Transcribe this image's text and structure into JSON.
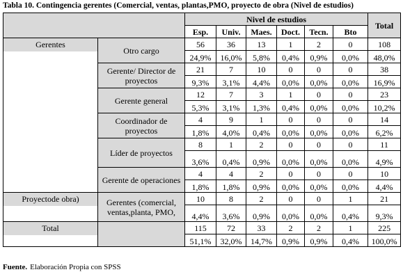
{
  "title": "Tabla 10. Contingencia gerentes (Comercial, ventas, plantas,PMO, proyecto de obra (Nivel de estudios)",
  "table": {
    "group_header": "Nivel de estudios",
    "total_header": "Total",
    "columns": [
      "Esp.",
      "Univ.",
      "Maes.",
      "Doct.",
      "Tecn.",
      "Bto"
    ],
    "groups": [
      {
        "label": "Gerentes",
        "rows": [
          {
            "label": "Otro cargo",
            "counts": [
              56,
              36,
              13,
              1,
              2,
              0,
              108
            ],
            "percents": [
              "24,9%",
              "16,0%",
              "5,8%",
              "0,4%",
              "0,9%",
              "0,0%",
              "48,0%"
            ]
          },
          {
            "label": "Gerente/ Director de proyectos",
            "counts": [
              21,
              7,
              10,
              0,
              0,
              0,
              38
            ],
            "percents": [
              "9,3%",
              "3,1%",
              "4,4%",
              "0,0%",
              "0,0%",
              "0,0%",
              "16,9%"
            ]
          },
          {
            "label": "Gerente general",
            "counts": [
              12,
              7,
              3,
              1,
              0,
              0,
              23
            ],
            "percents": [
              "5,3%",
              "3,1%",
              "1,3%",
              "0,4%",
              "0,0%",
              "0,0%",
              "10,2%"
            ]
          },
          {
            "label": "Coordinador de proyectos",
            "counts": [
              4,
              9,
              1,
              0,
              0,
              0,
              14
            ],
            "percents": [
              "1,8%",
              "4,0%",
              "0,4%",
              "0,0%",
              "0,0%",
              "0,0%",
              "6,2%"
            ]
          },
          {
            "label": "Líder de proyectos",
            "counts": [
              8,
              1,
              2,
              0,
              0,
              0,
              11
            ],
            "percents": [
              "3,6%",
              "0,4%",
              "0,9%",
              "0,0%",
              "0,0%",
              "0,0%",
              "4,9%"
            ]
          },
          {
            "label": "Gerente de operaciones",
            "counts": [
              4,
              4,
              2,
              0,
              0,
              0,
              10
            ],
            "percents": [
              "1,8%",
              "1,8%",
              "0,9%",
              "0,0%",
              "0,0%",
              "0,0%",
              "4,4%"
            ]
          }
        ]
      },
      {
        "label": "Proyectode obra)",
        "rows": [
          {
            "label": "Gerentes (comercial, ventas,planta, PMO,",
            "counts": [
              10,
              8,
              2,
              0,
              0,
              1,
              21
            ],
            "percents": [
              "4,4%",
              "3,6%",
              "0,9%",
              "0,0%",
              "0,0%",
              "0,4%",
              "9,3%"
            ]
          }
        ]
      },
      {
        "label": "Total",
        "rows": [
          {
            "label": null,
            "counts": [
              115,
              72,
              33,
              2,
              2,
              1,
              225
            ],
            "percents": [
              "51,1%",
              "32,0%",
              "14,7%",
              "0,9%",
              "0,9%",
              "0,4%",
              "100,0%"
            ]
          }
        ]
      }
    ]
  },
  "footer": {
    "label": "Fuente.",
    "text": "Elaboración Propia con SPSS"
  }
}
